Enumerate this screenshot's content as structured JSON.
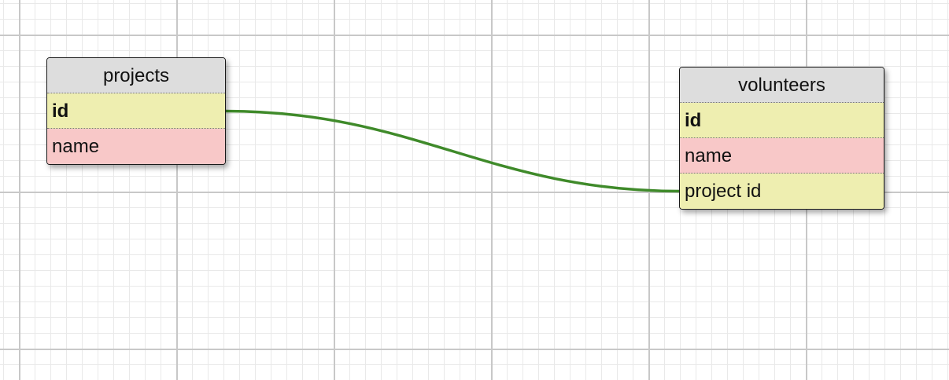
{
  "colors": {
    "title_bg": "#dddddd",
    "row_yellow": "#eeeeb0",
    "row_pink": "#f8c8c8",
    "relation": "#3f8a2a"
  },
  "tables": [
    {
      "name": "projects",
      "rows": [
        {
          "label": "id",
          "key": true,
          "color": "#eeeeb0"
        },
        {
          "label": "name",
          "key": false,
          "color": "#f8c8c8"
        }
      ]
    },
    {
      "name": "volunteers",
      "rows": [
        {
          "label": "id",
          "key": true,
          "color": "#eeeeb0"
        },
        {
          "label": "name",
          "key": false,
          "color": "#f8c8c8"
        },
        {
          "label": "project id",
          "key": false,
          "color": "#eeeeb0"
        }
      ]
    }
  ],
  "relations": [
    {
      "from_table": "projects",
      "from_field": "id",
      "to_table": "volunteers",
      "to_field": "project id"
    }
  ]
}
